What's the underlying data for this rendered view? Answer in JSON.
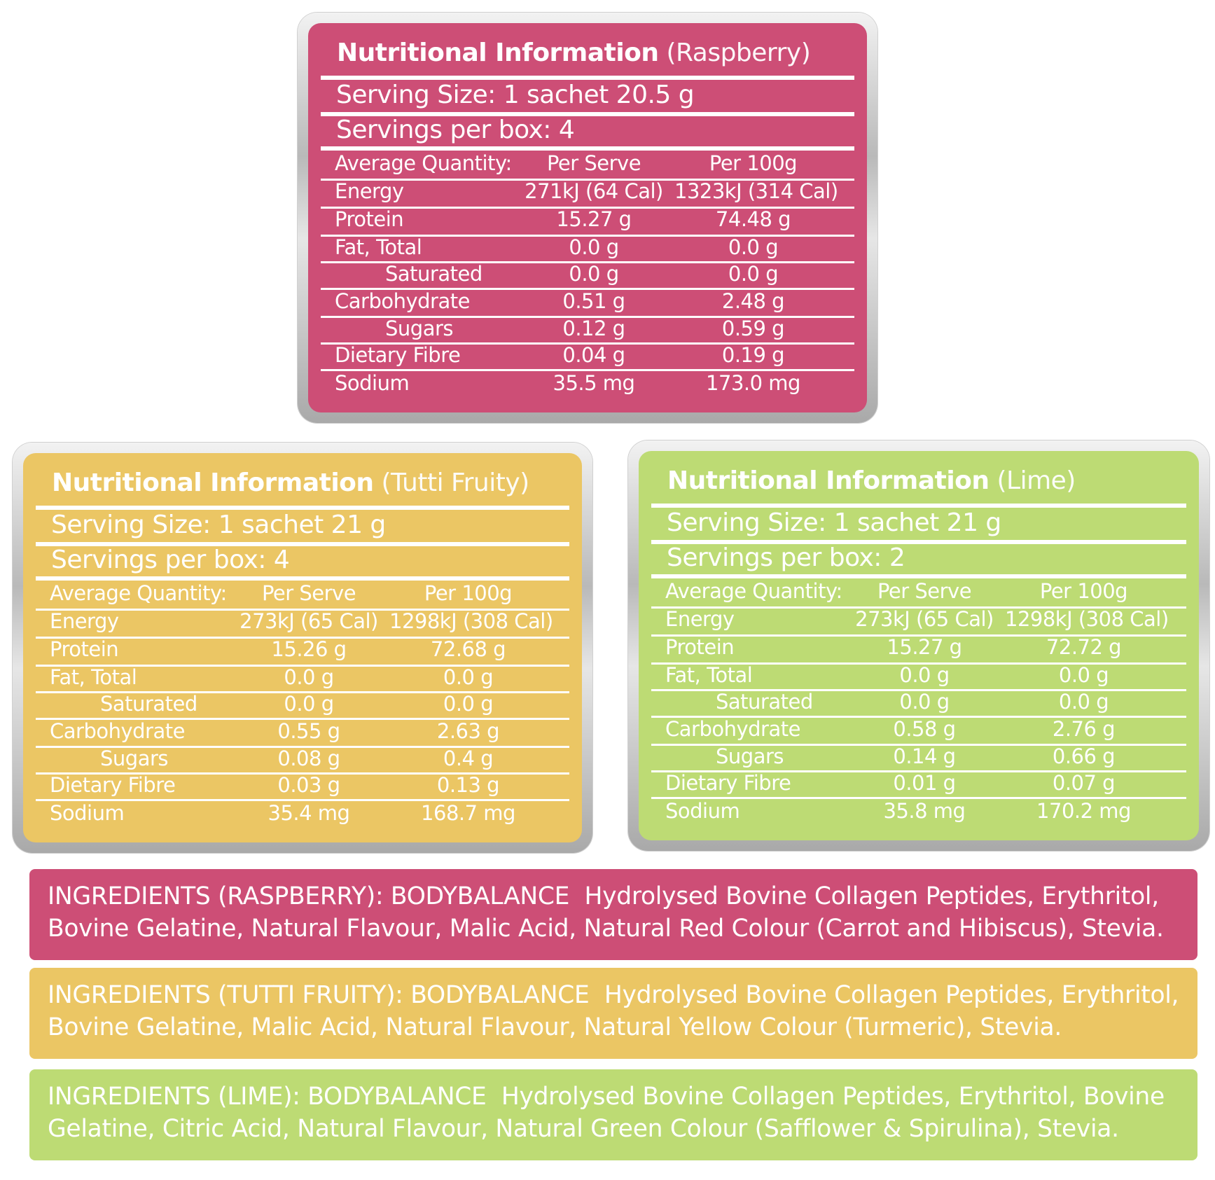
{
  "panels": {
    "raspberry": {
      "title_bold": "Nutritional Information",
      "title_flavour": "(Raspberry)",
      "serving_size": "Serving Size: 1 sachet 20.5 g",
      "servings_per_box": "Servings per box: 4",
      "header": {
        "label": "Average Quantity:",
        "per_serve": "Per Serve",
        "per_100g": "Per 100g"
      },
      "rows": [
        {
          "label": "Energy",
          "per_serve": "271kJ (64 Cal)",
          "per_100g": "1323kJ (314 Cal)"
        },
        {
          "label": "Protein",
          "per_serve": "15.27 g",
          "per_100g": "74.48 g"
        },
        {
          "label": "Fat, Total",
          "per_serve": "0.0 g",
          "per_100g": "0.0 g"
        },
        {
          "label": "Saturated",
          "per_serve": "0.0 g",
          "per_100g": "0.0 g"
        },
        {
          "label": "Carbohydrate",
          "per_serve": "0.51 g",
          "per_100g": "2.48 g"
        },
        {
          "label": "Sugars",
          "per_serve": "0.12 g",
          "per_100g": "0.59 g"
        },
        {
          "label": "Dietary Fibre",
          "per_serve": "0.04 g",
          "per_100g": "0.19 g"
        },
        {
          "label": "Sodium",
          "per_serve": "35.5 mg",
          "per_100g": "173.0 mg"
        }
      ]
    },
    "tutti": {
      "title_bold": "Nutritional Information",
      "title_flavour": "(Tutti Fruity)",
      "serving_size": "Serving Size: 1 sachet 21 g",
      "servings_per_box": "Servings per box: 4",
      "header": {
        "label": "Average Quantity:",
        "per_serve": "Per Serve",
        "per_100g": "Per 100g"
      },
      "rows": [
        {
          "label": "Energy",
          "per_serve": "273kJ (65 Cal)",
          "per_100g": "1298kJ (308 Cal)"
        },
        {
          "label": "Protein",
          "per_serve": "15.26 g",
          "per_100g": "72.68 g"
        },
        {
          "label": "Fat, Total",
          "per_serve": "0.0 g",
          "per_100g": "0.0 g"
        },
        {
          "label": "Saturated",
          "per_serve": "0.0 g",
          "per_100g": "0.0 g"
        },
        {
          "label": "Carbohydrate",
          "per_serve": "0.55 g",
          "per_100g": "2.63 g"
        },
        {
          "label": "Sugars",
          "per_serve": "0.08 g",
          "per_100g": "0.4 g"
        },
        {
          "label": "Dietary Fibre",
          "per_serve": "0.03 g",
          "per_100g": "0.13 g"
        },
        {
          "label": "Sodium",
          "per_serve": "35.4 mg",
          "per_100g": "168.7 mg"
        }
      ]
    },
    "lime": {
      "title_bold": "Nutritional Information",
      "title_flavour": "(Lime)",
      "serving_size": "Serving Size: 1 sachet 21 g",
      "servings_per_box": "Servings per box: 2",
      "header": {
        "label": "Average Quantity:",
        "per_serve": "Per Serve",
        "per_100g": "Per 100g"
      },
      "rows": [
        {
          "label": "Energy",
          "per_serve": "273kJ (65 Cal)",
          "per_100g": "1298kJ (308 Cal)"
        },
        {
          "label": "Protein",
          "per_serve": "15.27 g",
          "per_100g": "72.72 g"
        },
        {
          "label": "Fat, Total",
          "per_serve": "0.0 g",
          "per_100g": "0.0 g"
        },
        {
          "label": "Saturated",
          "per_serve": "0.0 g",
          "per_100g": "0.0 g"
        },
        {
          "label": "Carbohydrate",
          "per_serve": "0.58 g",
          "per_100g": "2.76 g"
        },
        {
          "label": "Sugars",
          "per_serve": "0.14 g",
          "per_100g": "0.66 g"
        },
        {
          "label": "Dietary Fibre",
          "per_serve": "0.01 g",
          "per_100g": "0.07 g"
        },
        {
          "label": "Sodium",
          "per_serve": "35.8 mg",
          "per_100g": "170.2 mg"
        }
      ]
    }
  },
  "ingredients": {
    "raspberry": {
      "line1": "INGREDIENTS (RASPBERRY): BODYBALANCE  Hydrolysed Bovine Collagen Peptides, Erythritol,",
      "line2": "Bovine Gelatine, Natural Flavour, Malic Acid, Natural Red Colour (Carrot and Hibiscus), Stevia."
    },
    "tutti": {
      "line1": "INGREDIENTS (TUTTI FRUITY): BODYBALANCE  Hydrolysed Bovine Collagen Peptides, Erythritol,",
      "line2": "Bovine Gelatine, Malic Acid, Natural Flavour, Natural Yellow Colour (Turmeric), Stevia."
    },
    "lime": {
      "line1": "INGREDIENTS (LIME): BODYBALANCE  Hydrolysed Bovine Collagen Peptides, Erythritol, Bovine",
      "line2": "Gelatine, Citric Acid, Natural Flavour, Natural Green Colour (Safflower & Spirulina), Stevia."
    }
  },
  "colors": {
    "raspberry": "#cd4e76",
    "tutti": "#ebc664",
    "lime": "#bddb74"
  }
}
